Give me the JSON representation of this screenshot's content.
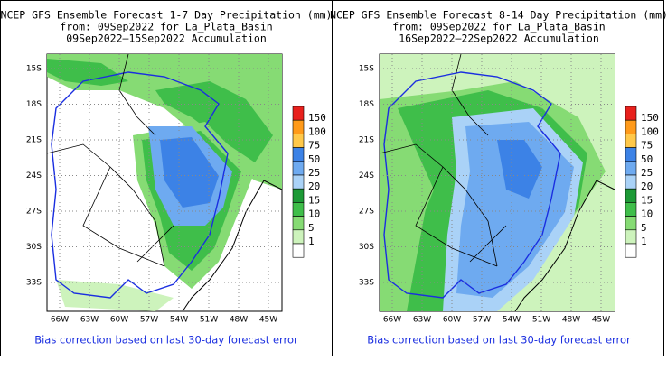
{
  "panels": [
    {
      "title": [
        "NCEP GFS Ensemble Forecast 1-7 Day Precipitation (mm)",
        "from: 09Sep2022   for La_Plata_Basin",
        "09Sep2022—15Sep2022 Accumulation"
      ],
      "lat_labels": [
        "15S",
        "18S",
        "21S",
        "24S",
        "27S",
        "30S",
        "33S"
      ],
      "lon_labels": [
        "66W",
        "63W",
        "60W",
        "57W",
        "54W",
        "51W",
        "48W",
        "45W"
      ],
      "colorbar": [
        "150",
        "100",
        "75",
        "50",
        "25",
        "20",
        "15",
        "10",
        "5",
        "1"
      ],
      "footer": "Bias correction based on last 30-day forecast error"
    },
    {
      "title": [
        "NCEP GFS Ensemble Forecast 8-14 Day Precipitation (mm)",
        "from: 09Sep2022   for La_Plata_Basin",
        "16Sep2022—22Sep2022 Accumulation"
      ],
      "lat_labels": [
        "15S",
        "18S",
        "21S",
        "24S",
        "27S",
        "30S",
        "33S"
      ],
      "lon_labels": [
        "66W",
        "63W",
        "60W",
        "57W",
        "54W",
        "51W",
        "48W",
        "45W"
      ],
      "colorbar": [
        "150",
        "100",
        "75",
        "50",
        "25",
        "20",
        "15",
        "10",
        "5",
        "1"
      ],
      "footer": "Bias correction based on last 30-day forecast error"
    }
  ]
}
